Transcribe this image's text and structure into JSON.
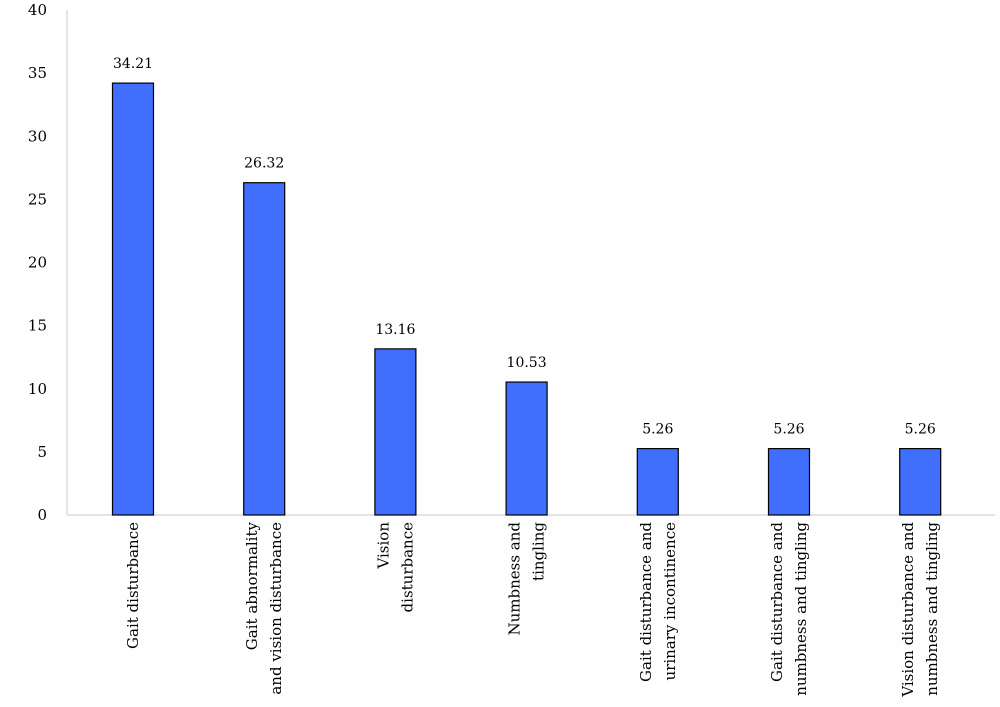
{
  "chart_data": {
    "type": "bar",
    "title": "",
    "xlabel": "",
    "ylabel": "",
    "ylim": [
      0,
      40
    ],
    "yticks": [
      0,
      5,
      10,
      15,
      20,
      25,
      30,
      35,
      40
    ],
    "grid": false,
    "legend": "none",
    "bar_color": "#3f6ffc",
    "categories": [
      [
        "Gait disturbance"
      ],
      [
        "Gait abnormality",
        "and vision disturbance"
      ],
      [
        "Vision",
        "disturbance"
      ],
      [
        "Numbness and",
        "tingling"
      ],
      [
        "Gait disturbance and",
        "urinary incontinence"
      ],
      [
        "Gait disturbance and",
        "numbness and tingling"
      ],
      [
        "Vision disturbance and",
        "numbness and tingling"
      ]
    ],
    "values": [
      34.21,
      26.32,
      13.16,
      10.53,
      5.26,
      5.26,
      5.26
    ],
    "data_labels": [
      "34.21",
      "26.32",
      "13.16",
      "10.53",
      "5.26",
      "5.26",
      "5.26"
    ]
  }
}
